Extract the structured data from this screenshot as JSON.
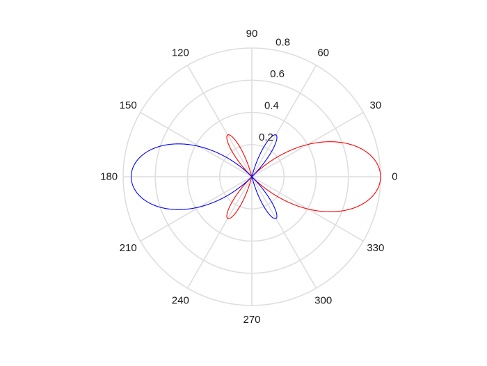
{
  "chart_data": {
    "type": "polar-line",
    "title": "",
    "angle_unit": "degrees",
    "angle_ticks": [
      0,
      30,
      60,
      90,
      120,
      150,
      180,
      210,
      240,
      270,
      300,
      330
    ],
    "angle_tick_labels": [
      "0",
      "30",
      "60",
      "90",
      "120",
      "150",
      "180",
      "210",
      "240",
      "270",
      "300",
      "330"
    ],
    "radial_ticks": [
      0.2,
      0.4,
      0.6,
      0.8
    ],
    "radial_tick_labels": [
      "0.2",
      "0.4",
      "0.6",
      "0.8"
    ],
    "rlim": [
      0,
      0.8
    ],
    "radial_label_angle_deg": 80,
    "grid": true,
    "series": [
      {
        "name": "red",
        "color": "#ff0000",
        "lobes": [
          {
            "center_deg": 0,
            "peak_r": 0.8,
            "half_width_deg": 45
          },
          {
            "center_deg": 120,
            "peak_r": 0.3,
            "half_width_deg": 15
          },
          {
            "center_deg": 240,
            "peak_r": 0.3,
            "half_width_deg": 15
          }
        ]
      },
      {
        "name": "blue",
        "color": "#0000ff",
        "lobes": [
          {
            "center_deg": 180,
            "peak_r": 0.75,
            "half_width_deg": 45
          },
          {
            "center_deg": 60,
            "peak_r": 0.3,
            "half_width_deg": 15
          },
          {
            "center_deg": 300,
            "peak_r": 0.3,
            "half_width_deg": 15
          }
        ]
      }
    ]
  }
}
